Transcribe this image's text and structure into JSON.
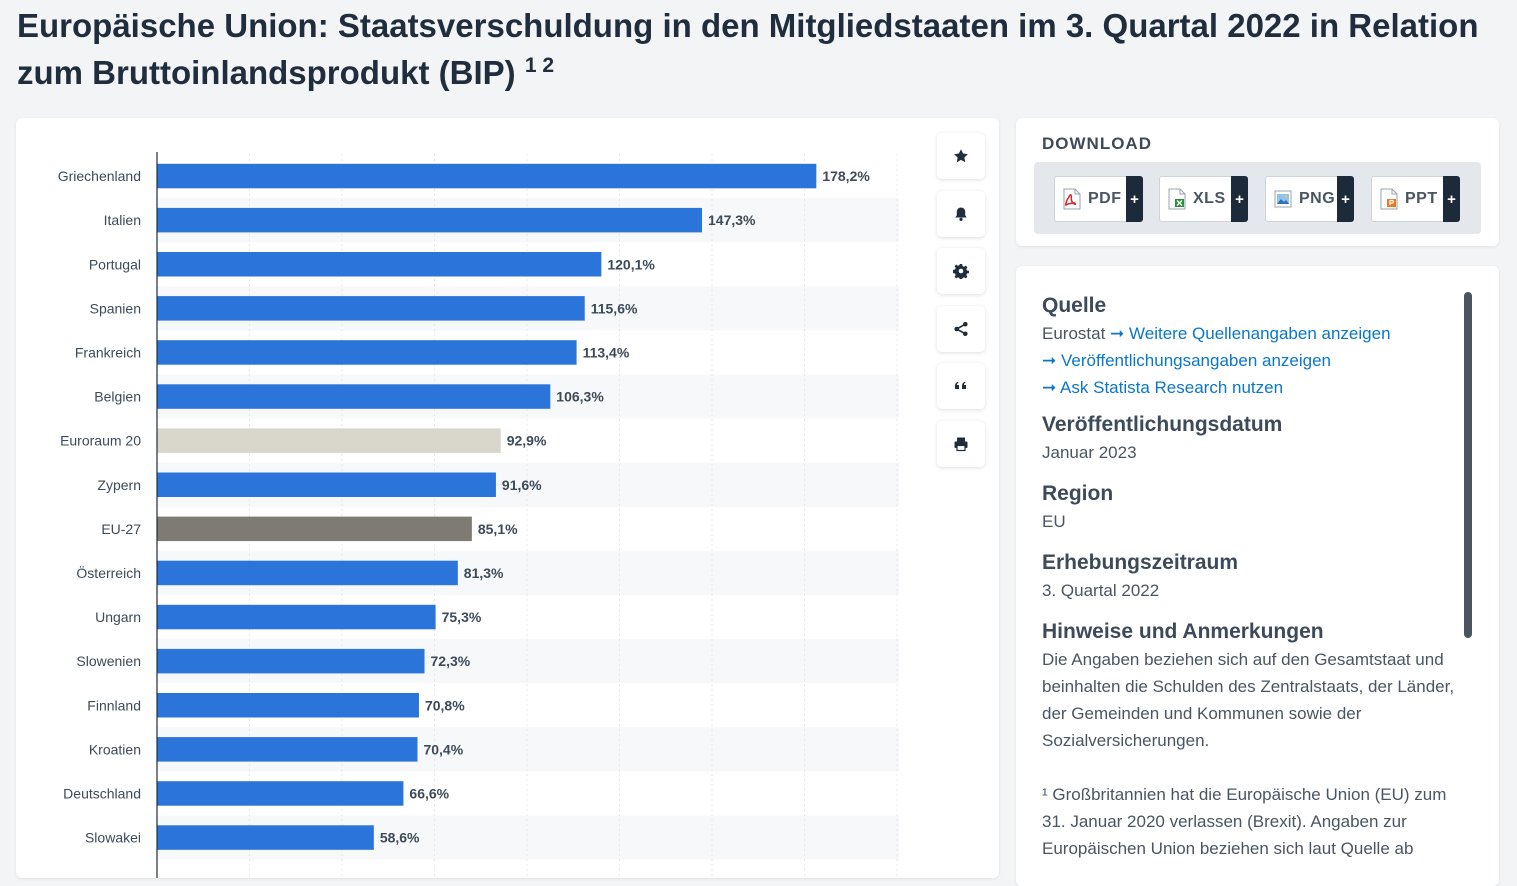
{
  "title": {
    "text": "Europäische Union: Staatsverschuldung in den Mitgliedstaaten im 3. Quartal 2022 in Relation zum Bruttoinlandsprodukt (BIP)",
    "sup": "1 2"
  },
  "toolbar": {
    "icons": [
      "star-icon",
      "bell-icon",
      "gear-icon",
      "share-icon",
      "quote-icon",
      "print-icon"
    ]
  },
  "download": {
    "title": "DOWNLOAD",
    "buttons": [
      {
        "label": "PDF",
        "plus": "+",
        "color": "#d9262a"
      },
      {
        "label": "XLS",
        "plus": "+",
        "color": "#2e8b3d"
      },
      {
        "label": "PNG",
        "plus": "+",
        "color": "#2f6fb8"
      },
      {
        "label": "PPT",
        "plus": "+",
        "color": "#e77a22"
      }
    ]
  },
  "info": {
    "source_heading": "Quelle",
    "source_name": "Eurostat",
    "links": [
      "Weitere Quellenangaben anzeigen",
      "Veröffentlichungsangaben anzeigen",
      "Ask Statista Research nutzen"
    ],
    "pub_heading": "Veröffentlichungsdatum",
    "pub_value": "Januar 2023",
    "region_heading": "Region",
    "region_value": "EU",
    "period_heading": "Erhebungszeitraum",
    "period_value": "3. Quartal 2022",
    "notes_heading": "Hinweise und Anmerkungen",
    "notes_text": "Die Angaben beziehen sich auf den Gesamtstaat und beinhalten die Schulden des Zentralstaats, der Länder, der Gemeinden und Kommunen sowie der Sozialversicherungen.",
    "footnote_text": "¹ Großbritannien hat die Europäische Union (EU) zum 31. Januar 2020 verlassen (Brexit). Angaben zur Europäischen Union beziehen sich laut Quelle ab"
  },
  "chart_data": {
    "type": "bar",
    "orientation": "horizontal",
    "xlim": [
      0,
      200
    ],
    "grid": true,
    "categories": [
      "Griechenland",
      "Italien",
      "Portugal",
      "Spanien",
      "Frankreich",
      "Belgien",
      "Euroraum 20",
      "Zypern",
      "EU-27",
      "Österreich",
      "Ungarn",
      "Slowenien",
      "Finnland",
      "Kroatien",
      "Deutschland",
      "Slowakei"
    ],
    "values": [
      178.2,
      147.3,
      120.1,
      115.6,
      113.4,
      106.3,
      92.9,
      91.6,
      85.1,
      81.3,
      75.3,
      72.3,
      70.8,
      70.4,
      66.6,
      58.6
    ],
    "value_labels": [
      "178,2%",
      "147,3%",
      "120,1%",
      "115,6%",
      "113,4%",
      "106,3%",
      "92,9%",
      "91,6%",
      "85,1%",
      "81,3%",
      "75,3%",
      "72,3%",
      "70,8%",
      "70,4%",
      "66,6%",
      "58,6%"
    ],
    "colors": [
      "#2b74d9",
      "#2b74d9",
      "#2b74d9",
      "#2b74d9",
      "#2b74d9",
      "#2b74d9",
      "#d9d6cc",
      "#2b74d9",
      "#7d7b72",
      "#2b74d9",
      "#2b74d9",
      "#2b74d9",
      "#2b74d9",
      "#2b74d9",
      "#2b74d9",
      "#2b74d9"
    ]
  }
}
